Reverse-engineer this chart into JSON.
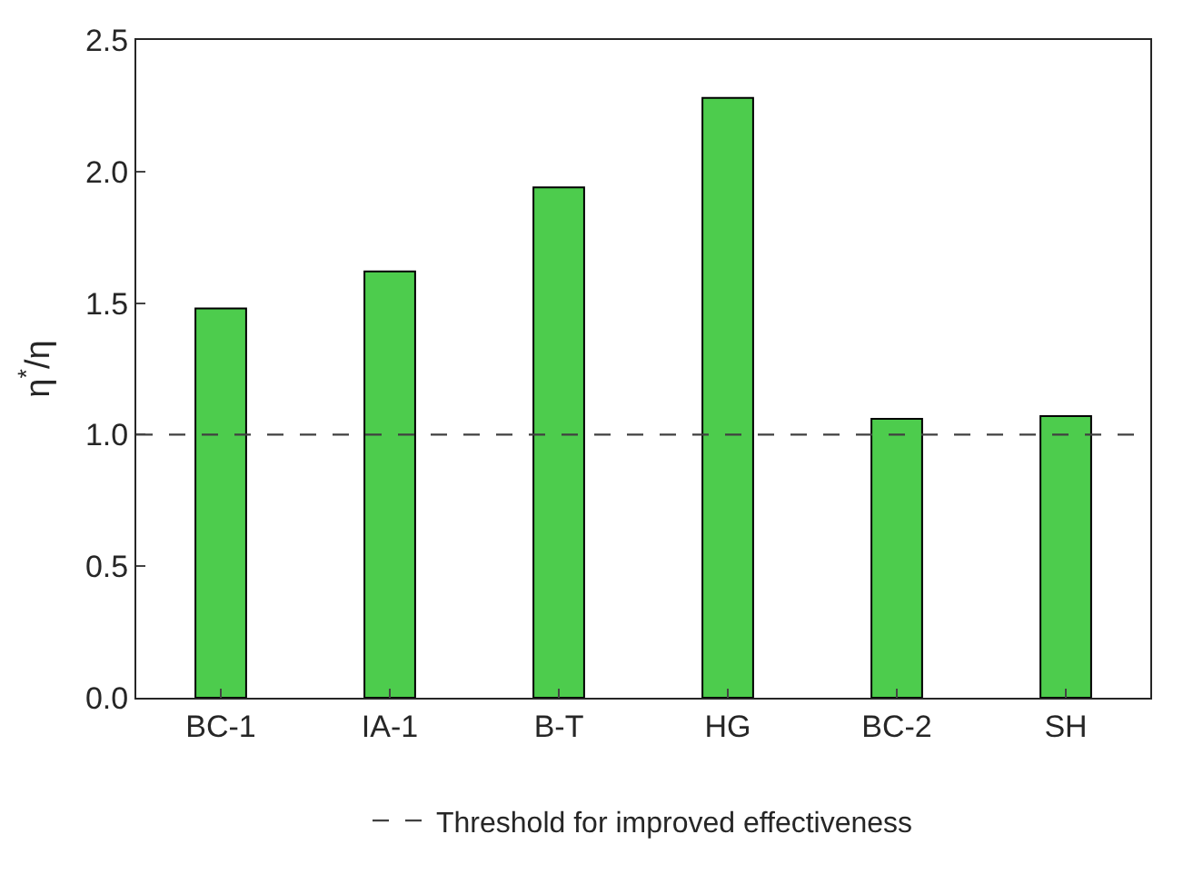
{
  "chart_data": {
    "type": "bar",
    "ylabel": "η$^{*}$/η",
    "categories": [
      "BC-1",
      "IA-1",
      "B-T",
      "HG",
      "BC-2",
      "SH"
    ],
    "values": [
      1.48,
      1.62,
      1.94,
      2.28,
      1.06,
      1.07
    ],
    "color": "#4dcc4d",
    "ylim": [
      0,
      2.5
    ],
    "yticks": [
      {
        "value": 0,
        "label": "0.0"
      },
      {
        "value": 0.5,
        "label": "0.5"
      },
      {
        "value": 1,
        "label": "1.0"
      },
      {
        "value": 1.5,
        "label": "1.5"
      },
      {
        "value": 2,
        "label": "2.0"
      },
      {
        "value": 2.5,
        "label": "2.5"
      }
    ],
    "ref_lines": [
      {
        "axis": "y",
        "value": 1,
        "label": "Threshold for improved effectiveness",
        "color": "#404040",
        "line_style": "dashed"
      }
    ],
    "grid": false,
    "legend": "bottom"
  }
}
